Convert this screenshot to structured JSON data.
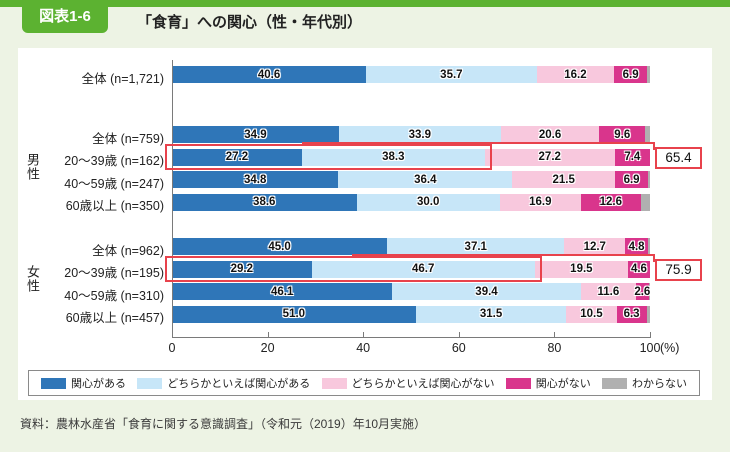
{
  "header": {
    "badge": "図表1-6",
    "title": "「食育」への関心（性・年代別）"
  },
  "footer": {
    "source": "資料：農林水産省「食育に関する意識調査」（令和元（2019）年10月実施）"
  },
  "colors": {
    "accent_green": "#5cb231",
    "page_bg": "#edf3e4",
    "highlight_red": "#e8424c",
    "series": [
      "#2f76b8",
      "#c7e6f8",
      "#f8c8dd",
      "#d9358c",
      "#b0b0b0"
    ]
  },
  "chart_data": {
    "type": "bar",
    "stacked": true,
    "orientation": "horizontal",
    "title": "「食育」への関心（性・年代別）",
    "xlim": [
      0,
      100
    ],
    "x_ticks": [
      0,
      20,
      40,
      60,
      80,
      100
    ],
    "unit_label": "(%)",
    "legend_position": "bottom",
    "series_names": [
      "関心がある",
      "どちらかといえば関心がある",
      "どちらかといえば関心がない",
      "関心がない",
      "わからない"
    ],
    "note": "わからない segment equals remainder to 100%, unlabeled in chart",
    "groups": [
      {
        "group_label": "",
        "rows": [
          {
            "label": "全体 (n=1,721)",
            "values": [
              40.6,
              35.7,
              16.2,
              6.9
            ]
          }
        ]
      },
      {
        "group_label": "男性",
        "rows": [
          {
            "label": "全体 (n=759)",
            "values": [
              34.9,
              33.9,
              20.6,
              9.6
            ]
          },
          {
            "label": "20～39歳 (n=162)",
            "values": [
              27.2,
              38.3,
              27.2,
              7.4
            ],
            "highlight_sum": "65.4"
          },
          {
            "label": "40～59歳 (n=247)",
            "values": [
              34.8,
              36.4,
              21.5,
              6.9
            ]
          },
          {
            "label": "60歳以上 (n=350)",
            "values": [
              38.6,
              30.0,
              16.9,
              12.6
            ]
          }
        ]
      },
      {
        "group_label": "女性",
        "rows": [
          {
            "label": "全体 (n=962)",
            "values": [
              45.0,
              37.1,
              12.7,
              4.8
            ]
          },
          {
            "label": "20～39歳 (n=195)",
            "values": [
              29.2,
              46.7,
              19.5,
              4.6
            ],
            "highlight_sum": "75.9"
          },
          {
            "label": "40～59歳 (n=310)",
            "values": [
              46.1,
              39.4,
              11.6,
              2.6
            ]
          },
          {
            "label": "60歳以上 (n=457)",
            "values": [
              51.0,
              31.5,
              10.5,
              6.3
            ]
          }
        ]
      }
    ]
  }
}
